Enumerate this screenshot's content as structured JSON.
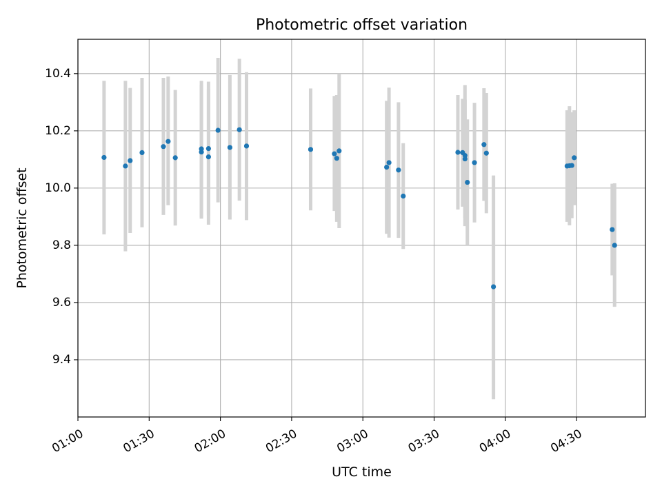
{
  "chart_data": {
    "type": "scatter",
    "title": "Photometric offset variation",
    "xlabel": "UTC time",
    "ylabel": "Photometric offset",
    "x_tick_labels": [
      "01:00",
      "01:30",
      "02:00",
      "02:30",
      "03:00",
      "03:30",
      "04:00",
      "04:30"
    ],
    "y_tick_labels": [
      "9.4",
      "9.6",
      "9.8",
      "10.0",
      "10.2",
      "10.4"
    ],
    "x_ticks": [
      "01:00",
      "01:30",
      "02:00",
      "02:30",
      "03:00",
      "03:30",
      "04:00",
      "04:30"
    ],
    "y_ticks": [
      9.4,
      9.6,
      9.8,
      10.0,
      10.2,
      10.4
    ],
    "xlim": [
      "01:00",
      "04:59"
    ],
    "ylim": [
      9.2,
      10.52
    ],
    "grid": true,
    "marker_color": "#1f77b4",
    "errorbar_color": "#d3d3d3",
    "points": [
      {
        "t": "01:11",
        "y": 10.107,
        "lo": 9.838,
        "hi": 10.375
      },
      {
        "t": "01:20",
        "y": 10.077,
        "lo": 9.779,
        "hi": 10.375
      },
      {
        "t": "01:22",
        "y": 10.096,
        "lo": 9.843,
        "hi": 10.35
      },
      {
        "t": "01:27",
        "y": 10.124,
        "lo": 9.863,
        "hi": 10.385
      },
      {
        "t": "01:36",
        "y": 10.145,
        "lo": 9.906,
        "hi": 10.385
      },
      {
        "t": "01:38",
        "y": 10.163,
        "lo": 9.94,
        "hi": 10.39
      },
      {
        "t": "01:41",
        "y": 10.106,
        "lo": 9.869,
        "hi": 10.343
      },
      {
        "t": "01:52",
        "y": 10.137,
        "lo": 9.898,
        "hi": 10.375
      },
      {
        "t": "01:52",
        "y": 10.126,
        "lo": 9.893,
        "hi": 10.36
      },
      {
        "t": "01:55",
        "y": 10.109,
        "lo": 9.872,
        "hi": 10.345
      },
      {
        "t": "01:55",
        "y": 10.138,
        "lo": 9.905,
        "hi": 10.372
      },
      {
        "t": "01:59",
        "y": 10.202,
        "lo": 9.95,
        "hi": 10.455
      },
      {
        "t": "02:04",
        "y": 10.142,
        "lo": 9.89,
        "hi": 10.395
      },
      {
        "t": "02:08",
        "y": 10.204,
        "lo": 9.956,
        "hi": 10.452
      },
      {
        "t": "02:11",
        "y": 10.147,
        "lo": 9.888,
        "hi": 10.405
      },
      {
        "t": "02:38",
        "y": 10.135,
        "lo": 9.922,
        "hi": 10.348
      },
      {
        "t": "02:48",
        "y": 10.12,
        "lo": 9.92,
        "hi": 10.322
      },
      {
        "t": "02:49",
        "y": 10.104,
        "lo": 9.882,
        "hi": 10.325
      },
      {
        "t": "02:50",
        "y": 10.13,
        "lo": 9.86,
        "hi": 10.4
      },
      {
        "t": "03:10",
        "y": 10.073,
        "lo": 9.84,
        "hi": 10.305
      },
      {
        "t": "03:11",
        "y": 10.089,
        "lo": 9.827,
        "hi": 10.351
      },
      {
        "t": "03:15",
        "y": 10.063,
        "lo": 9.826,
        "hi": 10.3
      },
      {
        "t": "03:17",
        "y": 9.972,
        "lo": 9.787,
        "hi": 10.157
      },
      {
        "t": "03:40",
        "y": 10.125,
        "lo": 9.925,
        "hi": 10.325
      },
      {
        "t": "03:42",
        "y": 10.124,
        "lo": 9.935,
        "hi": 10.312
      },
      {
        "t": "03:43",
        "y": 10.114,
        "lo": 9.867,
        "hi": 10.36
      },
      {
        "t": "03:43",
        "y": 10.102,
        "lo": 9.895,
        "hi": 10.309
      },
      {
        "t": "03:44",
        "y": 10.02,
        "lo": 9.8,
        "hi": 10.24
      },
      {
        "t": "03:47",
        "y": 10.089,
        "lo": 9.88,
        "hi": 10.298
      },
      {
        "t": "03:51",
        "y": 10.152,
        "lo": 9.955,
        "hi": 10.349
      },
      {
        "t": "03:52",
        "y": 10.122,
        "lo": 9.912,
        "hi": 10.332
      },
      {
        "t": "03:55",
        "y": 9.655,
        "lo": 9.262,
        "hi": 10.044
      },
      {
        "t": "04:26",
        "y": 10.077,
        "lo": 9.882,
        "hi": 10.272
      },
      {
        "t": "04:27",
        "y": 10.078,
        "lo": 9.87,
        "hi": 10.286
      },
      {
        "t": "04:28",
        "y": 10.079,
        "lo": 9.895,
        "hi": 10.265
      },
      {
        "t": "04:29",
        "y": 10.106,
        "lo": 9.94,
        "hi": 10.272
      },
      {
        "t": "04:45",
        "y": 9.855,
        "lo": 9.695,
        "hi": 10.015
      },
      {
        "t": "04:46",
        "y": 9.8,
        "lo": 9.585,
        "hi": 10.017
      }
    ]
  }
}
